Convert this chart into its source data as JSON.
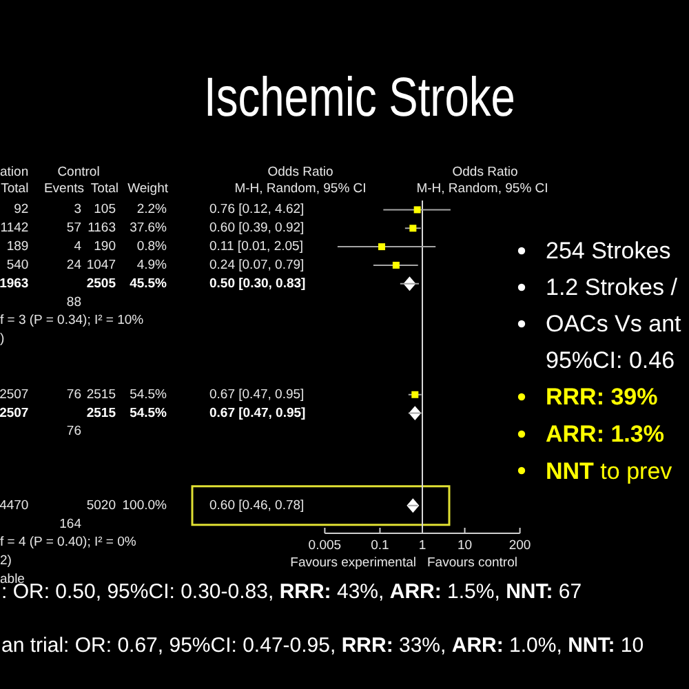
{
  "chart_data": {
    "type": "scatter",
    "orientation": "horizontal",
    "title": "Ischemic Stroke",
    "categories": [
      null,
      null,
      null,
      null,
      null,
      null,
      null,
      null,
      null,
      null,
      null,
      null,
      null,
      null,
      null,
      null,
      null,
      null
    ],
    "series": [
      {
        "color": "#ffff00",
        "marker": "square",
        "values": [
          0.76,
          0.6,
          0.11,
          0.24,
          null,
          null,
          null,
          null,
          null,
          null,
          0.67,
          null,
          null,
          null,
          null,
          null,
          null,
          null
        ],
        "errors": [
          [
            0.12,
            4.62
          ],
          [
            0.39,
            0.92
          ],
          [
            0.01,
            2.05
          ],
          [
            0.07,
            0.79
          ],
          null,
          null,
          null,
          null,
          null,
          null,
          [
            0.47,
            0.95
          ],
          null,
          null,
          null,
          null,
          null,
          null,
          null
        ]
      },
      {
        "color": "#ffffff",
        "marker": "diamond",
        "values": [
          null,
          null,
          null,
          null,
          0.5,
          null,
          null,
          null,
          null,
          null,
          null,
          0.67,
          null,
          null,
          null,
          null,
          0.6,
          null
        ],
        "errors": [
          null,
          null,
          null,
          null,
          [
            0.3,
            0.83
          ],
          null,
          null,
          null,
          null,
          null,
          null,
          [
            0.47,
            0.95
          ],
          null,
          null,
          null,
          null,
          [
            0.46,
            0.78
          ],
          null
        ]
      }
    ],
    "xlim": [
      0.005,
      200
    ],
    "xticks": [
      0.005,
      0.1,
      1,
      10,
      200
    ],
    "log": "x",
    "ref_lines": [
      {
        "axis": "x",
        "value": 1,
        "color": "#d9d9d9"
      }
    ],
    "annotations": [
      "ation",
      "Control",
      "Odds Ratio",
      "Odds Ratio",
      "Total",
      "Events",
      "Total",
      "Weight",
      "M-H, Random, 95% CI",
      "M-H, Random, 95% CI",
      "92",
      "3",
      "105",
      "2.2%",
      "0.76 [0.12, 4.62]",
      "1142",
      "57",
      "1163",
      "37.6%",
      "0.60 [0.39, 0.92]",
      "189",
      "4",
      "190",
      "0.8%",
      "0.11 [0.01, 2.05]",
      "540",
      "24",
      "1047",
      "4.9%",
      "0.24 [0.07, 0.79]",
      "1963",
      "2505",
      "45.5%",
      "0.50 [0.30, 0.83]",
      "88",
      "f = 3 (P = 0.34); I² = 10%",
      ")",
      "2507",
      "76",
      "2515",
      "54.5%",
      "0.67 [0.47, 0.95]",
      "2507",
      "2515",
      "54.5%",
      "0.67 [0.47, 0.95]",
      "76",
      "4470",
      "5020",
      "100.0%",
      "0.60 [0.46, 0.78]",
      "164",
      "f = 4 (P = 0.40); I² = 0%",
      "2)",
      "able",
      "Favours experimental",
      "Favours control",
      "254 Strokes",
      "1.2 Strokes /",
      "OACs Vs ant",
      "95%CI: 0.46",
      "RRR: 39%",
      "ARR: 1.3%",
      "NNT to prev",
      ": OR: 0.50, 95%CI: 0.30-0.83, RRR: 43%, ARR: 1.5%, NNT: 67",
      "an trial: OR: 0.67, 95%CI: 0.47-0.95, RRR: 33%, ARR: 1.0%, NNT: 10"
    ]
  }
}
